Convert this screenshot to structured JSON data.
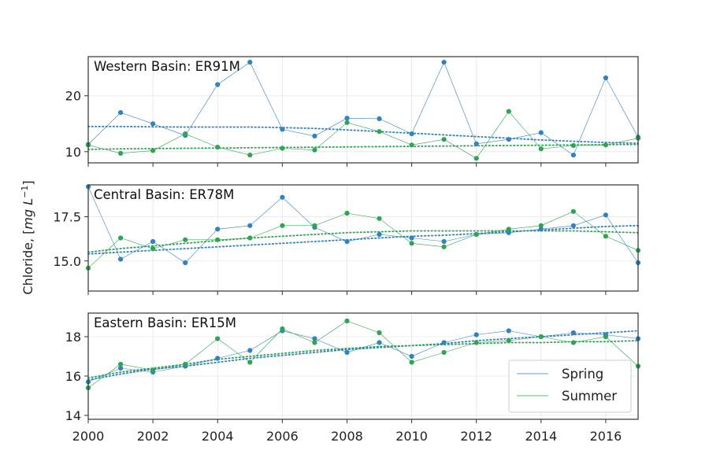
{
  "chart_data": {
    "type": "line",
    "ylabel": "Chloride, [mg L−1]",
    "ylabel_parts": {
      "prefix": "Chloride, [",
      "mg": "mg",
      "L": " L",
      "exp": "−1",
      "suffix": "]"
    },
    "xlim": [
      2000,
      2017
    ],
    "xticks": [
      2000,
      2002,
      2004,
      2006,
      2008,
      2010,
      2012,
      2014,
      2016
    ],
    "grid": true,
    "legend": {
      "placement": "lower-right of bottom panel",
      "entries": [
        {
          "name": "Spring",
          "color": "#3182bd"
        },
        {
          "name": "Summer",
          "color": "#31a354"
        }
      ]
    },
    "colors": {
      "spring": "#3182bd",
      "summer": "#31a354"
    },
    "panels": [
      {
        "title": "Western Basin: ER91M",
        "ylim": [
          8,
          27
        ],
        "yticks": [
          10,
          20
        ],
        "series": [
          {
            "name": "Spring",
            "x": [
              2000,
              2001,
              2002,
              2003,
              2004,
              2005,
              2006,
              2007,
              2008,
              2009,
              2010,
              2011,
              2012,
              2013,
              2014,
              2015,
              2016,
              2017
            ],
            "y": [
              11.3,
              17.0,
              15.0,
              12.9,
              22.0,
              26.0,
              14.0,
              12.8,
              16.0,
              15.9,
              13.2,
              26.0,
              11.4,
              12.2,
              13.4,
              9.4,
              23.2,
              12.6
            ],
            "trend": [
              14.5,
              14.5,
              14.45,
              14.4,
              14.4,
              14.4,
              14.3,
              14.15,
              13.9,
              13.6,
              13.3,
              13.0,
              12.7,
              12.4,
              12.1,
              11.85,
              11.65,
              11.5
            ]
          },
          {
            "name": "Summer",
            "x": [
              2000,
              2001,
              2002,
              2003,
              2004,
              2005,
              2006,
              2007,
              2008,
              2009,
              2010,
              2011,
              2012,
              2013,
              2014,
              2015,
              2016,
              2017
            ],
            "y": [
              11.2,
              9.7,
              10.2,
              13.2,
              10.8,
              9.4,
              10.6,
              10.3,
              15.2,
              13.6,
              11.2,
              12.2,
              8.8,
              17.2,
              10.5,
              11.1,
              11.2,
              12.4
            ],
            "trend": [
              10.4,
              10.5,
              10.55,
              10.6,
              10.65,
              10.7,
              10.75,
              10.8,
              10.85,
              10.9,
              10.95,
              11.0,
              11.05,
              11.1,
              11.15,
              11.2,
              11.25,
              11.3
            ]
          }
        ]
      },
      {
        "title": "Central Basin: ER78M",
        "ylim": [
          13.3,
          19.3
        ],
        "yticks": [
          15.0,
          17.5
        ],
        "ytick_labels": [
          "15.0",
          "17.5"
        ],
        "series": [
          {
            "name": "Spring",
            "x": [
              2000,
              2001,
              2002,
              2003,
              2004,
              2005,
              2006,
              2007,
              2008,
              2009,
              2010,
              2011,
              2012,
              2013,
              2014,
              2015,
              2016,
              2017
            ],
            "y": [
              19.2,
              15.1,
              16.1,
              14.9,
              16.8,
              17.0,
              18.6,
              16.9,
              16.1,
              16.5,
              16.3,
              16.1,
              16.5,
              16.6,
              16.8,
              17.0,
              17.6,
              14.9
            ],
            "trend": [
              15.4,
              15.5,
              15.6,
              15.7,
              15.8,
              15.9,
              16.0,
              16.1,
              16.2,
              16.3,
              16.4,
              16.45,
              16.55,
              16.65,
              16.75,
              16.85,
              16.95,
              17.0
            ]
          },
          {
            "name": "Summer",
            "x": [
              2000,
              2001,
              2002,
              2003,
              2004,
              2005,
              2006,
              2007,
              2008,
              2009,
              2010,
              2011,
              2012,
              2013,
              2014,
              2015,
              2016,
              2017
            ],
            "y": [
              14.6,
              16.3,
              15.7,
              16.2,
              16.2,
              16.3,
              17.0,
              17.0,
              17.7,
              17.4,
              16.0,
              15.8,
              16.5,
              16.8,
              17.0,
              17.8,
              16.4,
              15.6
            ],
            "trend": [
              15.5,
              15.7,
              15.85,
              16.0,
              16.15,
              16.3,
              16.4,
              16.5,
              16.6,
              16.65,
              16.7,
              16.7,
              16.7,
              16.7,
              16.7,
              16.7,
              16.65,
              16.6
            ]
          }
        ]
      },
      {
        "title": "Eastern Basin: ER15M",
        "ylim": [
          13.8,
          19.2
        ],
        "yticks": [
          14,
          16,
          18
        ],
        "series": [
          {
            "name": "Spring",
            "x": [
              2000,
              2001,
              2002,
              2003,
              2004,
              2005,
              2006,
              2007,
              2008,
              2009,
              2010,
              2011,
              2012,
              2013,
              2014,
              2015,
              2016,
              2017
            ],
            "y": [
              15.7,
              16.4,
              16.2,
              16.5,
              16.9,
              17.3,
              18.3,
              17.9,
              17.2,
              17.7,
              17.0,
              17.7,
              18.1,
              18.3,
              18.0,
              18.2,
              18.1,
              17.9
            ],
            "trend": [
              15.8,
              16.1,
              16.35,
              16.5,
              16.7,
              16.9,
              17.05,
              17.2,
              17.35,
              17.45,
              17.55,
              17.65,
              17.8,
              17.9,
              18.0,
              18.1,
              18.2,
              18.3
            ]
          },
          {
            "name": "Summer",
            "x": [
              2000,
              2001,
              2002,
              2003,
              2004,
              2005,
              2006,
              2007,
              2008,
              2009,
              2010,
              2011,
              2012,
              2013,
              2014,
              2015,
              2016,
              2017
            ],
            "y": [
              15.4,
              16.6,
              16.3,
              16.6,
              17.9,
              16.7,
              18.4,
              17.7,
              18.8,
              18.2,
              16.7,
              17.2,
              17.7,
              17.8,
              18.0,
              17.7,
              18.0,
              16.5
            ],
            "trend": [
              15.9,
              16.2,
              16.4,
              16.6,
              16.85,
              17.0,
              17.15,
              17.3,
              17.4,
              17.5,
              17.55,
              17.6,
              17.65,
              17.7,
              17.7,
              17.75,
              17.75,
              17.8
            ]
          }
        ]
      }
    ]
  }
}
